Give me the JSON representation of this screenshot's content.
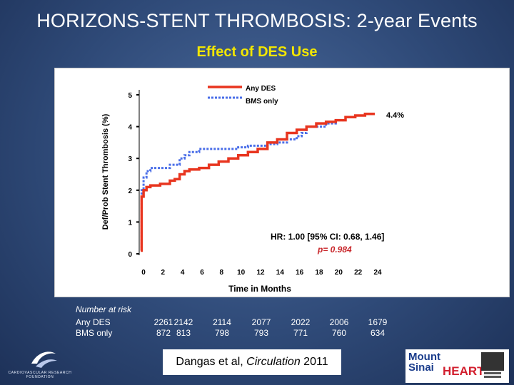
{
  "slide": {
    "title": "HORIZONS-STENT THROMBOSIS: 2-year Events",
    "subtitle": "Effect of DES Use",
    "citation_prefix": "Dangas et al, ",
    "citation_journal": "Circulation",
    "citation_year": " 2011",
    "logo_left_text": "CARDIOVASCULAR RESEARCH FOUNDATION",
    "logo_right_text_1": "Mount",
    "logo_right_text_2": "Sinai",
    "logo_right_text_3": "HEART"
  },
  "colors": {
    "any_des": "#e8351f",
    "bms_only": "#4a6ee8",
    "title": "#ffffff",
    "subtitle": "#f2e600",
    "hr_text": "#000000",
    "p_value": "#c8262a"
  },
  "chart_data": {
    "type": "line",
    "ylabel": "Def/Prob Stent Thrombosis (%)",
    "xlabel": "Time in Months",
    "xlim": [
      0,
      24
    ],
    "ylim": [
      0,
      5
    ],
    "xticks": [
      "0",
      "2",
      "4",
      "6",
      "8",
      "10",
      "12",
      "14",
      "16",
      "18",
      "20",
      "22",
      "24"
    ],
    "yticks": [
      "0",
      "1",
      "2",
      "3",
      "4",
      "5"
    ],
    "end_label": "4.4%",
    "hr_text": "HR: 1.00 [95% CI: 0.68, 1.46]",
    "p_text": "p= 0.984",
    "series": [
      {
        "name": "Any DES",
        "style": "solid",
        "points": [
          [
            0,
            0.1
          ],
          [
            0.1,
            1.8
          ],
          [
            0.3,
            2.0
          ],
          [
            0.6,
            2.1
          ],
          [
            1,
            2.15
          ],
          [
            2,
            2.2
          ],
          [
            3,
            2.3
          ],
          [
            3.5,
            2.35
          ],
          [
            4,
            2.5
          ],
          [
            4.5,
            2.6
          ],
          [
            5,
            2.65
          ],
          [
            6,
            2.7
          ],
          [
            7,
            2.8
          ],
          [
            8,
            2.9
          ],
          [
            9,
            3.0
          ],
          [
            10,
            3.1
          ],
          [
            11,
            3.2
          ],
          [
            12,
            3.3
          ],
          [
            13,
            3.5
          ],
          [
            14,
            3.6
          ],
          [
            15,
            3.8
          ],
          [
            16,
            3.9
          ],
          [
            17,
            4.0
          ],
          [
            18,
            4.1
          ],
          [
            19,
            4.15
          ],
          [
            20,
            4.2
          ],
          [
            21,
            4.3
          ],
          [
            22,
            4.35
          ],
          [
            23,
            4.4
          ],
          [
            24,
            4.4
          ]
        ]
      },
      {
        "name": "BMS only",
        "style": "dashed",
        "points": [
          [
            0,
            0.1
          ],
          [
            0.1,
            2.0
          ],
          [
            0.3,
            2.4
          ],
          [
            0.6,
            2.6
          ],
          [
            1,
            2.7
          ],
          [
            3,
            2.8
          ],
          [
            4,
            3.0
          ],
          [
            4.5,
            3.1
          ],
          [
            5,
            3.2
          ],
          [
            6,
            3.3
          ],
          [
            7,
            3.3
          ],
          [
            10,
            3.35
          ],
          [
            11,
            3.4
          ],
          [
            12,
            3.4
          ],
          [
            13,
            3.45
          ],
          [
            14,
            3.5
          ],
          [
            15,
            3.6
          ],
          [
            16,
            3.7
          ],
          [
            16.5,
            3.8
          ],
          [
            17,
            4.0
          ],
          [
            18,
            4.0
          ],
          [
            19,
            4.1
          ],
          [
            20,
            4.2
          ],
          [
            21,
            4.3
          ],
          [
            22,
            4.35
          ],
          [
            23,
            4.4
          ],
          [
            24,
            4.4
          ]
        ]
      }
    ]
  },
  "risk_table": {
    "title": "Number at risk",
    "rows": [
      {
        "label": "Any DES",
        "values": [
          "2261",
          "2142",
          "2114",
          "2077",
          "2022",
          "2006",
          "1679"
        ]
      },
      {
        "label": "BMS only",
        "values": [
          "872",
          "813",
          "798",
          "793",
          "771",
          "760",
          "634"
        ]
      }
    ]
  }
}
